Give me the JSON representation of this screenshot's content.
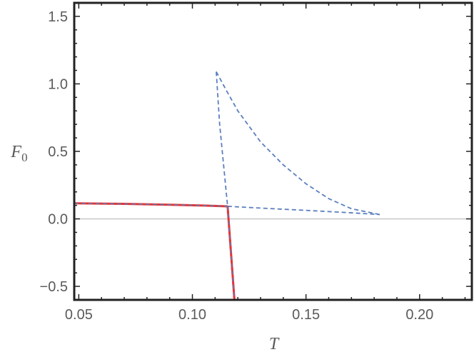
{
  "chart_data": {
    "type": "line",
    "title": "",
    "xlabel": "T",
    "ylabel": {
      "base": "F",
      "subscript": "0"
    },
    "xlim": [
      0.048,
      0.223
    ],
    "ylim": [
      -0.6,
      1.6
    ],
    "xticks": [
      {
        "value": 0.05,
        "label": "0.05"
      },
      {
        "value": 0.1,
        "label": "0.10"
      },
      {
        "value": 0.15,
        "label": "0.15"
      },
      {
        "value": 0.2,
        "label": "0.20"
      }
    ],
    "yticks": [
      {
        "value": -0.5,
        "label": "−0.5"
      },
      {
        "value": 0.0,
        "label": "0.0"
      },
      {
        "value": 0.5,
        "label": "0.5"
      },
      {
        "value": 1.0,
        "label": "1.0"
      },
      {
        "value": 1.5,
        "label": "1.5"
      }
    ],
    "zero_line": true,
    "grid": false,
    "series": [
      {
        "style": "dashed",
        "color": "#5b7fbf",
        "x": [
          0.048,
          0.07,
          0.09,
          0.105,
          0.1155
        ],
        "y": [
          0.115,
          0.111,
          0.105,
          0.099,
          0.093
        ]
      },
      {
        "style": "dashed",
        "color": "#5b7fbf",
        "x": [
          0.1155,
          0.13,
          0.15,
          0.17,
          0.1825
        ],
        "y": [
          0.093,
          0.08,
          0.063,
          0.045,
          0.032
        ]
      },
      {
        "style": "dashed",
        "color": "#5b7fbf",
        "x": [
          0.1105,
          0.112,
          0.1155,
          0.1185
        ],
        "y": [
          1.09,
          0.7,
          0.093,
          -0.6
        ]
      },
      {
        "style": "dashed",
        "color": "#5b7fbf",
        "x": [
          0.1105,
          0.115,
          0.12,
          0.13,
          0.14,
          0.15,
          0.16,
          0.17,
          0.1825
        ],
        "y": [
          1.09,
          0.95,
          0.8,
          0.57,
          0.4,
          0.26,
          0.15,
          0.075,
          0.032
        ]
      },
      {
        "style": "solid",
        "color": "#e8302e",
        "x": [
          0.048,
          0.07,
          0.09,
          0.105,
          0.1155
        ],
        "y": [
          0.115,
          0.111,
          0.105,
          0.099,
          0.093
        ]
      },
      {
        "style": "solid",
        "color": "#e8302e",
        "x": [
          0.1155,
          0.1185
        ],
        "y": [
          0.093,
          -0.6
        ]
      }
    ]
  }
}
